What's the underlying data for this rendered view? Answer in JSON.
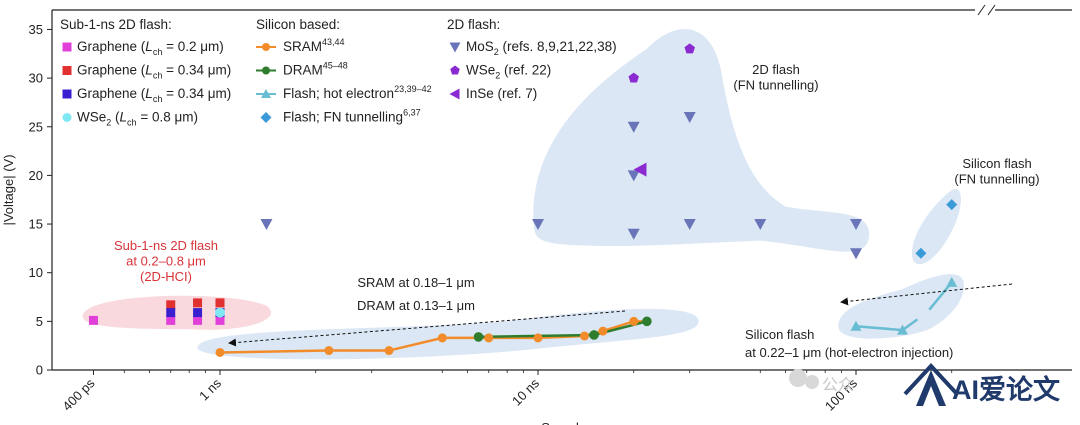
{
  "chart_data": {
    "type": "scatter",
    "xlabel": "Speed",
    "ylabel": "|Voltage| (V)",
    "x_scale": "log",
    "y_range": [
      0,
      37
    ],
    "x_range_seconds": [
      3e-10,
      2.2e-07
    ],
    "x_ticks": [
      {
        "label": "400 ps",
        "value": 4e-10
      },
      {
        "label": "1 ns",
        "value": 1e-09
      },
      {
        "label": "10 ns",
        "value": 1e-08
      },
      {
        "label": "100 ns",
        "value": 1e-07
      }
    ],
    "y_ticks": [
      0,
      5,
      10,
      15,
      20,
      25,
      30,
      35
    ],
    "legend_groups": [
      {
        "title": "Sub-1-ns 2D flash:",
        "entries": [
          {
            "id": "gr02",
            "label": "Graphene (",
            "lch": "L",
            "sub": "ch",
            "tail": " = 0.2 μm)",
            "color": "#e040d8",
            "marker": "square"
          },
          {
            "id": "gr034r",
            "label": "Graphene (",
            "lch": "L",
            "sub": "ch",
            "tail": " = 0.34 μm)",
            "color": "#e03030",
            "marker": "square"
          },
          {
            "id": "gr034b",
            "label": "Graphene (",
            "lch": "L",
            "sub": "ch",
            "tail": " = 0.34 μm)",
            "color": "#3a1fd0",
            "marker": "square"
          },
          {
            "id": "wse2",
            "label": "WSe",
            "sub2": "2",
            "label2": " (",
            "lch": "L",
            "sub": "ch",
            "tail": " = 0.8 μm)",
            "color": "#7fe8f2",
            "marker": "circle"
          }
        ]
      },
      {
        "title": "Silicon based:",
        "entries": [
          {
            "id": "sram",
            "label": "SRAM",
            "sup": "43,44",
            "color": "#f28c2a",
            "marker": "circle-line"
          },
          {
            "id": "dram",
            "label": "DRAM",
            "sup": "45–48",
            "color": "#2e7d2e",
            "marker": "circle-line"
          },
          {
            "id": "flash_he",
            "label": "Flash; hot electron",
            "sup": "23,39–42",
            "color": "#69bdd2",
            "marker": "triangle-line"
          },
          {
            "id": "flash_fn",
            "label": "Flash; FN tunnelling",
            "sup": "6,37",
            "color": "#3b9ad8",
            "marker": "diamond"
          }
        ]
      },
      {
        "title": "2D flash:",
        "entries": [
          {
            "id": "mos2",
            "label": "MoS",
            "sub2": "2",
            "label2": " (refs. 8,9,21,22,38)",
            "color": "#6a74b8",
            "marker": "triangle-down"
          },
          {
            "id": "wse2p",
            "label": "WSe",
            "sub2": "2",
            "label2": " (ref. 22)",
            "color": "#8a2ad0",
            "marker": "pentagon"
          },
          {
            "id": "inse",
            "label": "InSe (ref. 7)",
            "color": "#8a2ad0",
            "marker": "triangle-left"
          }
        ]
      }
    ],
    "series": {
      "graphene_02": [
        [
          4e-10,
          5.1
        ],
        [
          7e-10,
          5.1
        ],
        [
          8.5e-10,
          5.1
        ],
        [
          1e-09,
          5.1
        ]
      ],
      "graphene_034_red": [
        [
          7e-10,
          6.7
        ],
        [
          8.5e-10,
          6.9
        ],
        [
          1e-09,
          6.9
        ]
      ],
      "graphene_034_blue": [
        [
          7e-10,
          5.9
        ],
        [
          8.5e-10,
          5.9
        ],
        [
          1e-09,
          5.9
        ]
      ],
      "wse2_08": [
        [
          1e-09,
          5.9
        ]
      ],
      "sram": [
        [
          1e-09,
          1.8
        ],
        [
          2.2e-09,
          2.0
        ],
        [
          3.4e-09,
          2.0
        ],
        [
          5e-09,
          3.3
        ],
        [
          7e-09,
          3.3
        ],
        [
          1e-08,
          3.3
        ],
        [
          1.4e-08,
          3.5
        ],
        [
          1.6e-08,
          4.0
        ],
        [
          2e-08,
          5.0
        ],
        [
          2.2e-08,
          5.0
        ]
      ],
      "dram": [
        [
          6.5e-09,
          3.4
        ],
        [
          1.5e-08,
          3.6
        ],
        [
          2.2e-08,
          5.0
        ]
      ],
      "flash_hot_electron": [
        [
          1e-07,
          4.5
        ],
        [
          1.4e-07,
          4.1
        ],
        [
          2e-07,
          9.0
        ]
      ],
      "flash_fn": [
        [
          1.6e-07,
          12.0
        ],
        [
          2e-07,
          17.0
        ]
      ],
      "mos2": [
        [
          1.4e-09,
          15.0
        ],
        [
          2e-08,
          14.0
        ],
        [
          2e-08,
          25.0
        ],
        [
          2e-08,
          20.0
        ],
        [
          3e-08,
          15.0
        ],
        [
          3e-08,
          26.0
        ],
        [
          1e-08,
          15.0
        ],
        [
          5e-08,
          15.0
        ],
        [
          1e-07,
          15.0
        ],
        [
          1e-07,
          12.0
        ]
      ],
      "wse2_ref22": [
        [
          2e-08,
          30.0
        ],
        [
          3e-08,
          33.0
        ]
      ],
      "inse": [
        [
          2.1e-08,
          20.6
        ]
      ]
    },
    "annotations": {
      "sub1ns": [
        "Sub-1-ns 2D flash",
        "at 0.2–0.8 μm",
        "(2D-HCI)"
      ],
      "sram_dram": [
        "SRAM at 0.18–1 μm",
        "DRAM at 0.13–1 μm"
      ],
      "flash2d": [
        "2D flash",
        "(FN tunnelling)"
      ],
      "silicon_fn": [
        "Silicon flash",
        "(FN tunnelling)"
      ],
      "silicon_he": [
        "Silicon flash",
        "at 0.22–1 μm (hot-electron injection)"
      ]
    },
    "colors": {
      "axis": "#222222",
      "annotation_red": "#d8343a",
      "bubble_blue": "#dbe7f4",
      "bubble_pink": "#f9d9de"
    }
  },
  "watermark": {
    "logo_text": "AI爱论文",
    "small_text": "公众"
  }
}
